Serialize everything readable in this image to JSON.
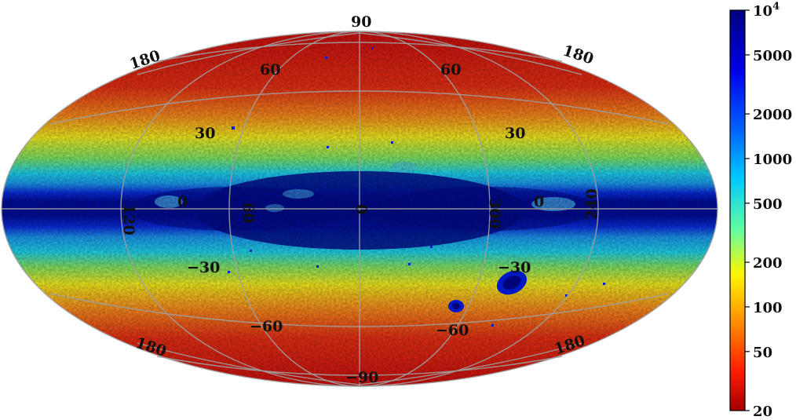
{
  "map": {
    "projection": "Aitoff/Hammer all-sky (Galactic coordinates)",
    "meridian_labels_top": [
      "180",
      "60",
      "60",
      "180"
    ],
    "meridian_labels_equator": [
      "120",
      "0",
      "60",
      "0",
      "300",
      "0",
      "240"
    ],
    "meridian_labels_bottom": [
      "180",
      "−60",
      "−60",
      "180"
    ],
    "parallel_labels": {
      "lat_90": "90",
      "lat_30_left": "30",
      "lat_30_right": "30",
      "lat_m30_left": "−30",
      "lat_m30_right": "−30",
      "lat_m90": "−90"
    }
  },
  "colorbar": {
    "scale": "log",
    "min": 20,
    "max": 10000,
    "colormap": "jet_r",
    "ticks": [
      {
        "value": 10000,
        "label": "10",
        "sup": "4"
      },
      {
        "value": 5000,
        "label": "5000"
      },
      {
        "value": 2000,
        "label": "2000"
      },
      {
        "value": 1000,
        "label": "1000"
      },
      {
        "value": 500,
        "label": "500"
      },
      {
        "value": 200,
        "label": "200"
      },
      {
        "value": 100,
        "label": "100"
      },
      {
        "value": 50,
        "label": "50"
      },
      {
        "value": 20,
        "label": "20"
      }
    ]
  },
  "colors": {
    "plane_dark_blue": "#000a8c",
    "band_blue": "#0a2ce0",
    "cyan": "#1ed6f0",
    "yellow": "#f6ef20",
    "orange": "#fb8c1e",
    "red": "#e41c14",
    "grid": "#a0a0a0"
  }
}
